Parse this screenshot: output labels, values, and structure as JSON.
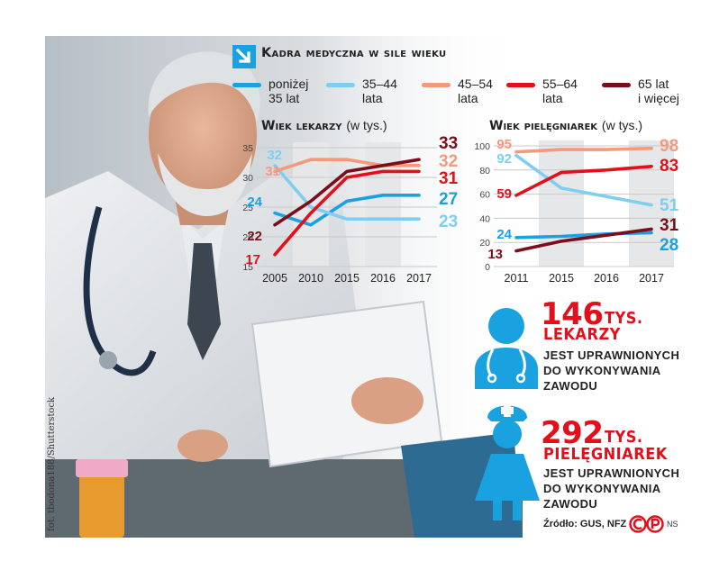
{
  "title": "Kadra medyczna w sile wieku",
  "photo_credit": "fot. tbodona188/Shutterstock",
  "colors": {
    "s1": "#1aa1e0",
    "s2": "#7fcdf1",
    "s3": "#f39a7d",
    "s4": "#e30f1b",
    "s5": "#7a0f1c",
    "accent_red": "#e30f1b",
    "accent_blue": "#1aa1e0"
  },
  "legend": [
    {
      "key": "s1",
      "line1": "poniżej",
      "line2": "35 lat"
    },
    {
      "key": "s2",
      "line1": "35–44",
      "line2": "lata"
    },
    {
      "key": "s3",
      "line1": "45–54",
      "line2": "lata"
    },
    {
      "key": "s4",
      "line1": "55–64",
      "line2": "lata"
    },
    {
      "key": "s5",
      "line1": "65 lat",
      "line2": "i więcej"
    }
  ],
  "chart_data": [
    {
      "type": "line",
      "title": "Wiek lekarzy",
      "unit": "(w tys.)",
      "x": [
        "2005",
        "2010",
        "2015",
        "2016",
        "2017"
      ],
      "yticks": [
        "15",
        "20",
        "25",
        "30",
        "35"
      ],
      "ylim": [
        15,
        35
      ],
      "series": [
        {
          "key": "s1",
          "name": "poniżej 35 lat",
          "values": [
            24,
            22,
            26,
            27,
            27
          ],
          "start_label": "24",
          "end_label": "27"
        },
        {
          "key": "s2",
          "name": "35–44 lata",
          "values": [
            32,
            25,
            23,
            23,
            23
          ],
          "start_label": "32",
          "end_label": "23"
        },
        {
          "key": "s3",
          "name": "45–54 lata",
          "values": [
            31,
            33,
            33,
            32,
            32
          ],
          "start_label": "31",
          "end_label": "32"
        },
        {
          "key": "s4",
          "name": "55–64 lata",
          "values": [
            17,
            24,
            30,
            31,
            31
          ],
          "start_label": "17",
          "end_label": "31"
        },
        {
          "key": "s5",
          "name": "65 lat i więcej",
          "values": [
            22,
            26,
            31,
            32,
            33
          ],
          "start_label": "22",
          "end_label": "33"
        }
      ]
    },
    {
      "type": "line",
      "title": "Wiek pielęgniarek",
      "unit": "(w tys.)",
      "x": [
        "2011",
        "2015",
        "2016",
        "2017"
      ],
      "yticks": [
        "0",
        "20",
        "40",
        "60",
        "80",
        "100"
      ],
      "ylim": [
        0,
        100
      ],
      "series": [
        {
          "key": "s1",
          "name": "poniżej 35 lat",
          "values": [
            24,
            25,
            27,
            28
          ],
          "start_label": "24",
          "end_label": "28"
        },
        {
          "key": "s2",
          "name": "35–44 lata",
          "values": [
            92,
            65,
            58,
            51
          ],
          "start_label": "92",
          "end_label": "51"
        },
        {
          "key": "s3",
          "name": "45–54 lata",
          "values": [
            95,
            97,
            97,
            98
          ],
          "start_label": "95",
          "end_label": "98"
        },
        {
          "key": "s4",
          "name": "55–64 lata",
          "values": [
            59,
            78,
            80,
            83
          ],
          "start_label": "59",
          "end_label": "83"
        },
        {
          "key": "s5",
          "name": "65 lat i więcej",
          "values": [
            13,
            21,
            26,
            31
          ],
          "start_label": "13",
          "end_label": "31"
        }
      ]
    }
  ],
  "stats": {
    "doctors": {
      "number": "146",
      "unit": "tys.",
      "label": "lekarzy",
      "desc1": "jest uprawnionych",
      "desc2": "do wykonywania",
      "desc3": "zawodu"
    },
    "nurses": {
      "number": "292",
      "unit": "tys.",
      "label": "pielęgniarek",
      "desc1": "jest uprawnionych",
      "desc2": "do wykonywania",
      "desc3": "zawodu"
    }
  },
  "source": "Źródło: GUS, NFZ",
  "logo_text": "NS"
}
